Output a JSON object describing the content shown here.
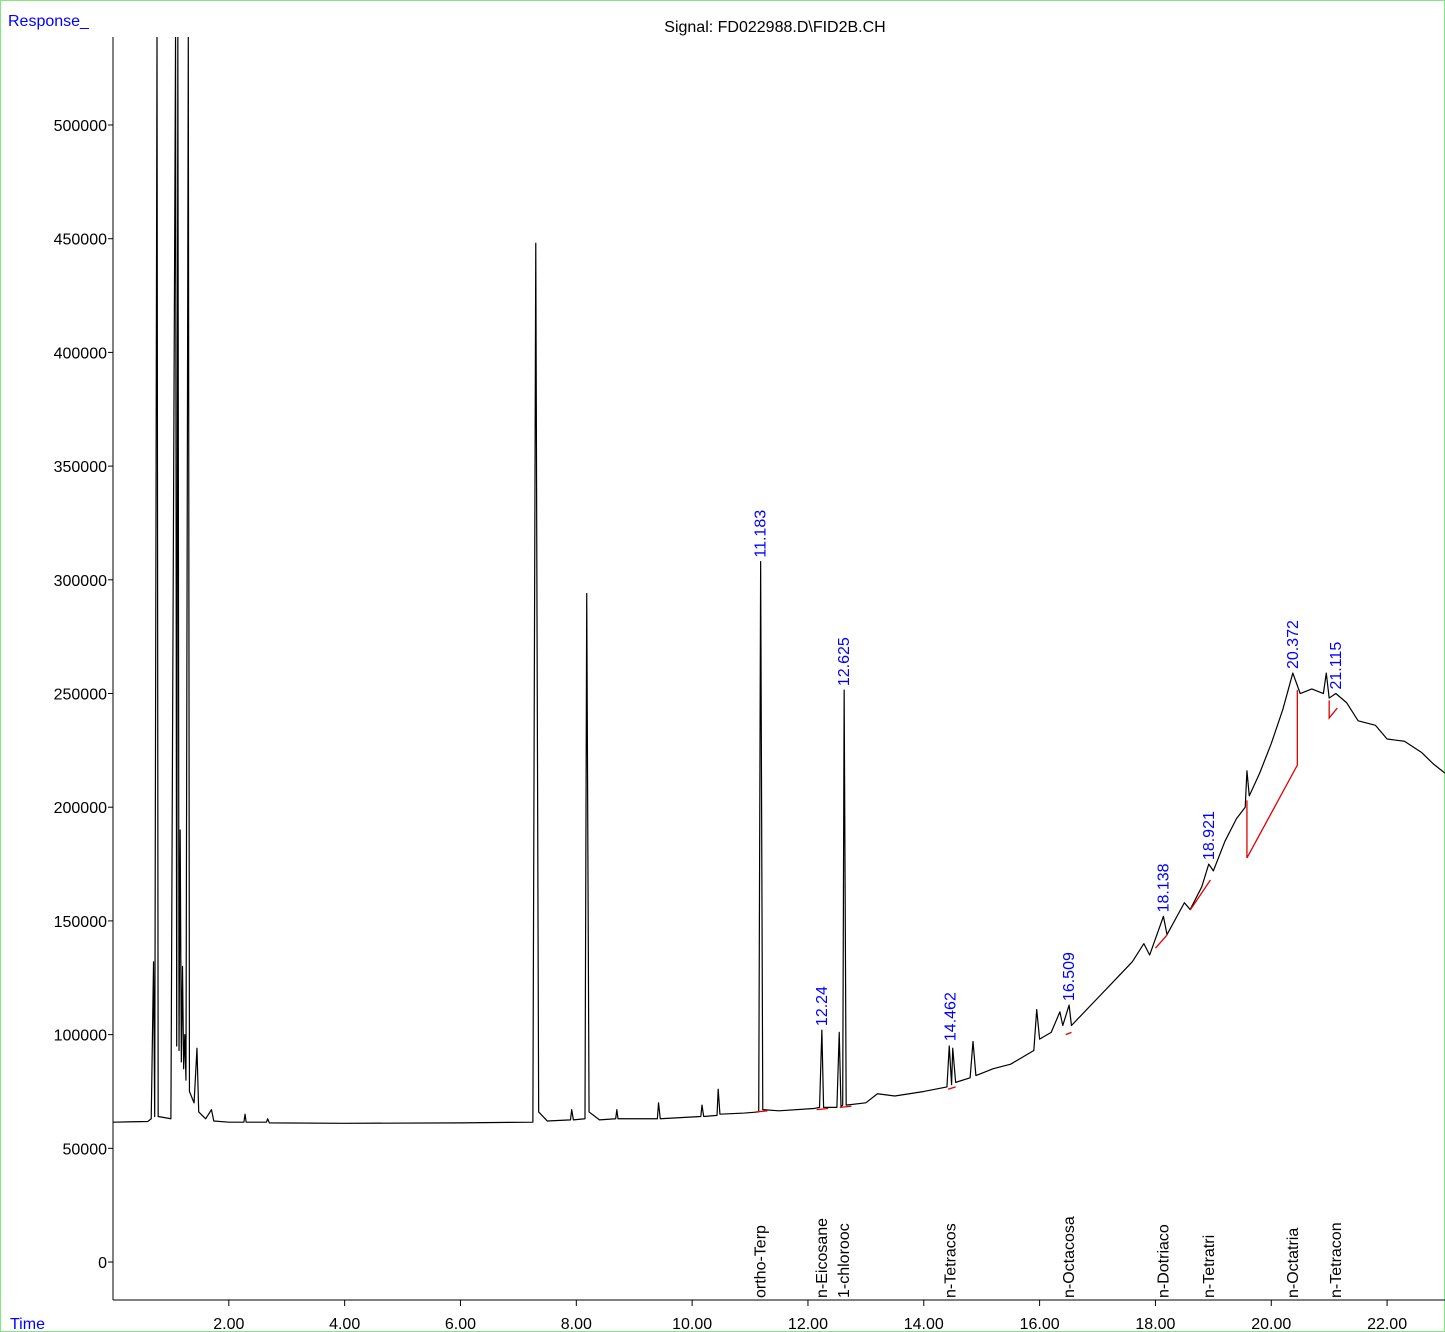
{
  "chart_data": {
    "type": "line",
    "title": "Signal: FD022988.D\\FID2B.CH",
    "y_label": "Response_",
    "x_label": "Time",
    "color": "#000000",
    "label_color": "#0000ff",
    "baseline_color": "#e00000",
    "xlim": [
      0,
      23
    ],
    "ylim": [
      -16700,
      538700
    ],
    "xticks": [
      {
        "value": 2,
        "label": "2.00"
      },
      {
        "value": 4,
        "label": "4.00"
      },
      {
        "value": 6,
        "label": "6.00"
      },
      {
        "value": 8,
        "label": "8.00"
      },
      {
        "value": 10,
        "label": "10.00"
      },
      {
        "value": 12,
        "label": "12.00"
      },
      {
        "value": 14,
        "label": "14.00"
      },
      {
        "value": 16,
        "label": "16.00"
      },
      {
        "value": 18,
        "label": "18.00"
      },
      {
        "value": 20,
        "label": "20.00"
      },
      {
        "value": 22,
        "label": "22.00"
      }
    ],
    "yticks": [
      0,
      50000,
      100000,
      150000,
      200000,
      250000,
      300000,
      350000,
      400000,
      450000,
      500000
    ],
    "x": [
      0,
      0.6,
      0.66,
      0.7,
      0.72,
      0.76,
      0.78,
      1.0,
      1.08,
      1.1,
      1.12,
      1.14,
      1.16,
      1.18,
      1.2,
      1.22,
      1.24,
      1.26,
      1.3,
      1.32,
      1.4,
      1.45,
      1.48,
      1.6,
      1.7,
      1.74,
      2.0,
      2.26,
      2.28,
      2.3,
      2.65,
      2.67,
      2.7,
      4.0,
      6.0,
      7.25,
      7.3,
      7.35,
      7.5,
      7.9,
      7.92,
      7.95,
      8.15,
      8.18,
      8.22,
      8.4,
      8.68,
      8.7,
      8.72,
      9.4,
      9.42,
      9.45,
      10.15,
      10.17,
      10.2,
      10.43,
      10.45,
      10.48,
      10.9,
      11.15,
      11.183,
      11.22,
      11.5,
      12.1,
      12.2,
      12.24,
      12.27,
      12.5,
      12.54,
      12.57,
      12.6,
      12.625,
      12.66,
      13.0,
      13.2,
      13.5,
      14.0,
      14.4,
      14.44,
      14.48,
      14.5,
      14.55,
      14.8,
      14.85,
      14.9,
      15.2,
      15.5,
      15.9,
      15.95,
      16.0,
      16.2,
      16.35,
      16.4,
      16.509,
      16.55,
      17.0,
      17.3,
      17.6,
      17.8,
      17.9,
      18.138,
      18.2,
      18.5,
      18.6,
      18.8,
      18.921,
      19.0,
      19.2,
      19.4,
      19.55,
      19.58,
      19.62,
      19.8,
      20.0,
      20.2,
      20.372,
      20.5,
      20.7,
      20.9,
      20.95,
      21.0,
      21.115,
      21.3,
      21.5,
      21.8,
      22.0,
      22.3,
      22.6,
      22.8,
      23.0
    ],
    "values": [
      61500,
      61800,
      63000,
      132000,
      64000,
      539000,
      64000,
      63000,
      539000,
      95000,
      539000,
      93000,
      190000,
      88000,
      130000,
      85000,
      100000,
      80000,
      539000,
      75000,
      70000,
      94000,
      66000,
      63000,
      67000,
      62000,
      61500,
      61500,
      65000,
      61500,
      61500,
      63000,
      61200,
      61000,
      61200,
      61500,
      448000,
      66000,
      62000,
      62500,
      67000,
      62500,
      63000,
      294000,
      66000,
      62500,
      63000,
      67000,
      63000,
      63000,
      70000,
      63000,
      64000,
      69000,
      64000,
      64500,
      76000,
      65000,
      65500,
      66000,
      308000,
      67000,
      66500,
      67500,
      68000,
      102000,
      68000,
      68000,
      101000,
      68500,
      69000,
      251500,
      69000,
      70000,
      74000,
      73000,
      75000,
      77000,
      95000,
      78000,
      94000,
      79000,
      81000,
      97000,
      82000,
      85000,
      87000,
      93000,
      111000,
      98000,
      101000,
      110000,
      104000,
      113000,
      104000,
      116000,
      124000,
      132000,
      140000,
      135000,
      152000,
      144000,
      158000,
      155000,
      165000,
      175000,
      172000,
      185000,
      195000,
      200000,
      216000,
      205000,
      215000,
      228000,
      243000,
      259000,
      250000,
      252000,
      250000,
      259000,
      248000,
      250000,
      246000,
      238000,
      236000,
      230000,
      229000,
      224000,
      219000,
      215000
    ],
    "peaks": [
      {
        "time": 11.183,
        "height": 308000,
        "compound": "ortho-Terp"
      },
      {
        "time": 12.24,
        "height": 102000,
        "compound": "n-Eicosane"
      },
      {
        "time": 12.625,
        "height": 251500,
        "compound": "1-chlorooc"
      },
      {
        "time": 14.462,
        "height": 95400,
        "compound": "n-Tetracos"
      },
      {
        "time": 16.509,
        "height": 113000,
        "compound": "n-Octacosa"
      },
      {
        "time": 18.138,
        "height": 152000,
        "compound": "n-Dotriaco"
      },
      {
        "time": 18.921,
        "height": 175000,
        "compound": "n-Tetratri"
      },
      {
        "time": 20.372,
        "height": 259000,
        "compound": "n-Octatria"
      },
      {
        "time": 21.115,
        "height": 250000,
        "compound": "n-Tetracon"
      }
    ],
    "baselines": [
      {
        "x": [
          11.1,
          11.3
        ],
        "y": [
          66000,
          66500
        ]
      },
      {
        "x": [
          12.15,
          12.35
        ],
        "y": [
          67000,
          67500
        ]
      },
      {
        "x": [
          12.55,
          12.75
        ],
        "y": [
          68000,
          68500
        ]
      },
      {
        "x": [
          14.42,
          14.55
        ],
        "y": [
          76000,
          77000
        ]
      },
      {
        "x": [
          16.45,
          16.55
        ],
        "y": [
          100000,
          101000
        ]
      },
      {
        "x": [
          18.0,
          18.2
        ],
        "y": [
          138000,
          143800
        ]
      },
      {
        "x": [
          18.6,
          18.95
        ],
        "y": [
          154800,
          168000
        ]
      },
      {
        "x": [
          19.58,
          19.58,
          20.45,
          20.45
        ],
        "y": [
          203000,
          177700,
          218500,
          251500
        ]
      },
      {
        "x": [
          21.0,
          21.0,
          21.14
        ],
        "y": [
          247000,
          239200,
          243600
        ]
      }
    ]
  }
}
